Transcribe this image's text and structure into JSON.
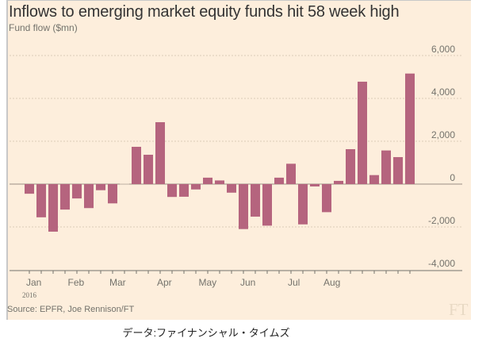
{
  "chart_data": {
    "type": "bar",
    "title": "Inflows to emerging market equity funds hit 58 week high",
    "subtitle": "Fund flow ($mn)",
    "xlabel": "",
    "ylabel": "Fund flow ($mn)",
    "ylim": [
      -4000,
      6000
    ],
    "yticks": [
      6000,
      4000,
      2000,
      0,
      -2000,
      -4000
    ],
    "ytick_labels": [
      "6,000",
      "4,000",
      "2,000",
      "0",
      "-2,000",
      "-4,000"
    ],
    "month_labels": [
      "Jan",
      "Feb",
      "Mar",
      "Apr",
      "May",
      "Jun",
      "Jul",
      "Aug"
    ],
    "month_label_week_index": [
      0,
      3.5,
      7,
      11,
      14.5,
      18,
      22,
      25
    ],
    "year_label": "2016",
    "grid": true,
    "bar_color": "#b5647e",
    "values": [
      -450,
      -1550,
      -2220,
      -1190,
      -670,
      -1120,
      -285,
      -900,
      20,
      1740,
      1370,
      2890,
      -600,
      -590,
      -250,
      300,
      170,
      -400,
      -2100,
      -1520,
      -1940,
      300,
      950,
      -1880,
      -110,
      -1310,
      150,
      1630,
      4780,
      420,
      1570,
      1260,
      5160
    ]
  },
  "footer": {
    "source": "Source: EPFR, Joe Rennison/FT",
    "logo": "FT",
    "caption": "データ:ファイナンシャル・タイムズ"
  }
}
